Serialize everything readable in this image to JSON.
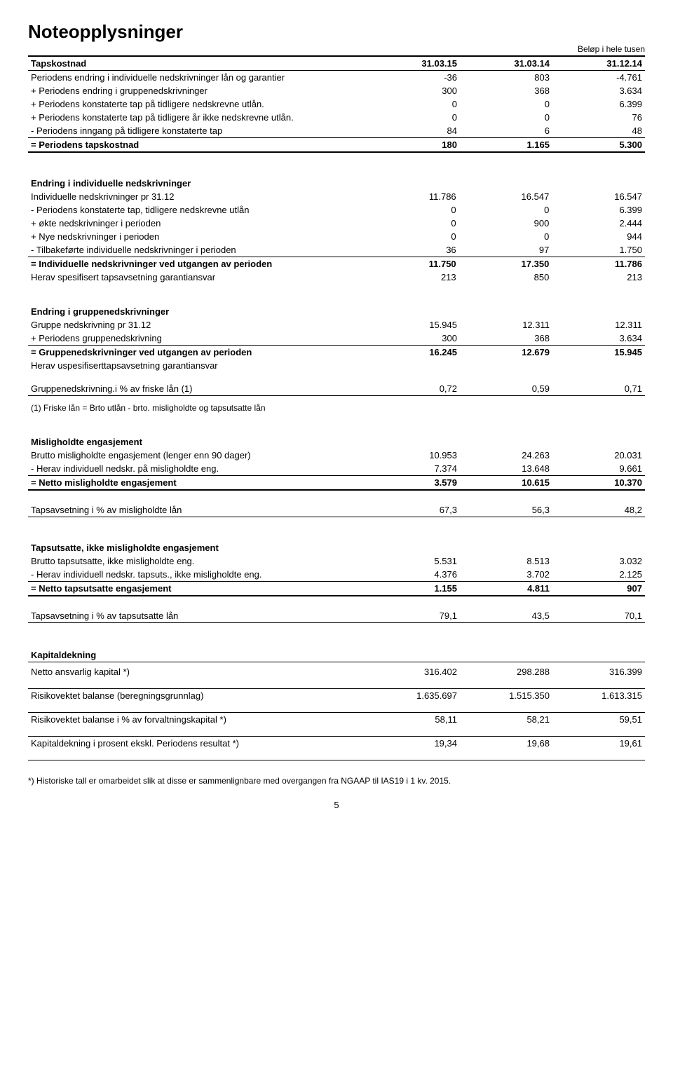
{
  "title": "Noteopplysninger",
  "unit_note": "Beløp i hele tusen",
  "headers": {
    "c1": "31.03.15",
    "c2": "31.03.14",
    "c3": "31.12.14"
  },
  "tapskostnad": {
    "label": "Tapskostnad",
    "rows": [
      {
        "l": "Periodens endring i individuelle nedskrivninger lån og garantier",
        "v": [
          "-36",
          "803",
          "-4.761"
        ]
      },
      {
        "l": "+ Periodens endring i gruppenedskrivninger",
        "v": [
          "300",
          "368",
          "3.634"
        ]
      },
      {
        "l": "+ Periodens konstaterte tap på tidligere nedskrevne utlån.",
        "v": [
          "0",
          "0",
          "6.399"
        ]
      },
      {
        "l": "+ Periodens konstaterte tap på tidligere år ikke nedskrevne utlån.",
        "v": [
          "0",
          "0",
          "76"
        ]
      },
      {
        "l": "- Periodens inngang på tidligere konstaterte tap",
        "v": [
          "84",
          "6",
          "48"
        ]
      }
    ],
    "sum": {
      "l": "= Periodens tapskostnad",
      "v": [
        "180",
        "1.165",
        "5.300"
      ]
    }
  },
  "endring_ind": {
    "title": "Endring i individuelle nedskrivninger",
    "rows": [
      {
        "l": "Individuelle nedskrivninger pr 31.12",
        "v": [
          "11.786",
          "16.547",
          "16.547"
        ]
      },
      {
        "l": "- Periodens konstaterte tap, tidligere nedskrevne utlån",
        "v": [
          "0",
          "0",
          "6.399"
        ]
      },
      {
        "l": "+ økte nedskrivninger i perioden",
        "v": [
          "0",
          "900",
          "2.444"
        ]
      },
      {
        "l": "+ Nye nedskrivninger i perioden",
        "v": [
          "0",
          "0",
          "944"
        ]
      },
      {
        "l": "- Tilbakeførte individuelle nedskrivninger i perioden",
        "v": [
          "36",
          "97",
          "1.750"
        ]
      }
    ],
    "sum": {
      "l": "= Individuelle nedskrivninger ved utgangen av perioden",
      "v": [
        "11.750",
        "17.350",
        "11.786"
      ]
    },
    "herav": {
      "l": "Herav spesifisert tapsavsetning garantiansvar",
      "v": [
        "213",
        "850",
        "213"
      ]
    }
  },
  "endring_gruppe": {
    "title": "Endring i gruppenedskrivninger",
    "rows": [
      {
        "l": "Gruppe nedskrivning pr 31.12",
        "v": [
          "15.945",
          "12.311",
          "12.311"
        ]
      },
      {
        "l": "+ Periodens gruppenedskrivning",
        "v": [
          "300",
          "368",
          "3.634"
        ]
      }
    ],
    "sum": {
      "l": "= Gruppenedskrivninger ved utgangen av perioden",
      "v": [
        "16.245",
        "12.679",
        "15.945"
      ]
    },
    "herav": {
      "l": "Herav uspesifiserttapsavsetning garantiansvar",
      "v": [
        "",
        "",
        ""
      ]
    },
    "pct": {
      "l": "Gruppenedskrivning.i % av friske lån (1)",
      "v": [
        "0,72",
        "0,59",
        "0,71"
      ]
    },
    "foot": "(1) Friske lån = Brto utlån - brto. misligholdte og tapsutsatte lån"
  },
  "mislighold": {
    "title": "Misligholdte engasjement",
    "rows": [
      {
        "l": "Brutto misligholdte engasjement (lenger enn 90 dager)",
        "v": [
          "10.953",
          "24.263",
          "20.031"
        ]
      },
      {
        "l": "- Herav individuell nedskr. på misligholdte eng.",
        "v": [
          "7.374",
          "13.648",
          "9.661"
        ]
      }
    ],
    "sum": {
      "l": "= Netto misligholdte engasjement",
      "v": [
        "3.579",
        "10.615",
        "10.370"
      ]
    },
    "pct": {
      "l": "Tapsavsetning i % av misligholdte lån",
      "v": [
        "67,3",
        "56,3",
        "48,2"
      ]
    }
  },
  "tapsutsatte": {
    "title": "Tapsutsatte, ikke misligholdte engasjement",
    "rows": [
      {
        "l": "Brutto tapsutsatte, ikke misligholdte eng.",
        "v": [
          "5.531",
          "8.513",
          "3.032"
        ]
      },
      {
        "l": "- Herav individuell nedskr. tapsuts., ikke misligholdte eng.",
        "v": [
          "4.376",
          "3.702",
          "2.125"
        ]
      }
    ],
    "sum": {
      "l": "= Netto tapsutsatte engasjement",
      "v": [
        "1.155",
        "4.811",
        "907"
      ]
    },
    "pct": {
      "l": "Tapsavsetning i % av tapsutsatte lån",
      "v": [
        "79,1",
        "43,5",
        "70,1"
      ]
    }
  },
  "kapital": {
    "title": "Kapitaldekning",
    "rows": [
      {
        "l": "Netto ansvarlig kapital *)",
        "v": [
          "316.402",
          "298.288",
          "316.399"
        ]
      },
      {
        "l": "Risikovektet balanse (beregningsgrunnlag)",
        "v": [
          "1.635.697",
          "1.515.350",
          "1.613.315"
        ]
      },
      {
        "l": "Risikovektet balanse i % av forvaltningskapital *)",
        "v": [
          "58,11",
          "58,21",
          "59,51"
        ]
      },
      {
        "l": "Kapitaldekning i prosent ekskl. Periodens resultat *)",
        "v": [
          "19,34",
          "19,68",
          "19,61"
        ]
      }
    ]
  },
  "footnote": "*) Historiske tall er omarbeidet slik at disse er sammenlignbare med overgangen fra NGAAP til IAS19 i 1 kv. 2015.",
  "page": "5"
}
